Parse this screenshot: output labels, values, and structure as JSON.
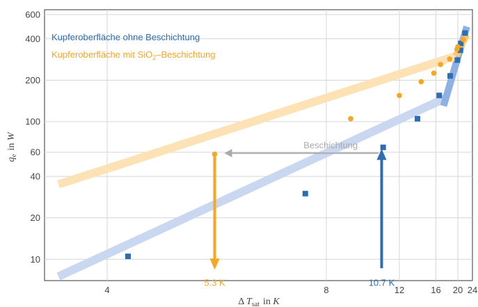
{
  "chart_data": {
    "type": "scatter",
    "x_scale": "reciprocal",
    "y_scale": "log",
    "xlim": [
      3.5,
      24
    ],
    "ylim": [
      7,
      650
    ],
    "xlabel": "Δ T_sat in K",
    "xlabel_parts": {
      "delta": "Δ",
      "symbol": "T",
      "subscript": "sat",
      "unit_prefix": "in",
      "unit": "K"
    },
    "ylabel": "q_e in W",
    "ylabel_parts": {
      "symbol": "q",
      "subscript": "e",
      "unit_prefix": "in",
      "unit": "W"
    },
    "x_ticks": [
      4,
      8,
      12,
      16,
      20,
      24
    ],
    "y_ticks": [
      10,
      20,
      40,
      60,
      100,
      200,
      400,
      600
    ],
    "grid": true,
    "legend_placement": "top-left",
    "series": [
      {
        "name": "Kupferoberfläche ohne Beschichtung",
        "color": "#2e6db3",
        "marker": "square",
        "x": [
          4.2,
          7.3,
          10.8,
          13.7,
          16.5,
          18.4,
          19.9,
          20.6,
          20.7,
          21.8
        ],
        "y": [
          10.5,
          30,
          65,
          105,
          155,
          215,
          280,
          330,
          370,
          440
        ],
        "band_color": "#c9d7f1",
        "band": {
          "x": [
            3.6,
            17.8
          ],
          "y": [
            7.5,
            150
          ]
        },
        "band_upper_color": "#8fb0e2",
        "band_upper": {
          "x": [
            17.2,
            22.3
          ],
          "y": [
            130,
            490
          ]
        }
      },
      {
        "name": "Kupferoberfläche mit SiO2–Beschichtung",
        "name_parts": {
          "prefix": "Kupferoberfläche mit SiO",
          "sub": "2",
          "suffix": "–Beschichtung"
        },
        "color": "#f5a623",
        "marker": "circle",
        "x": [
          5.3,
          9.0,
          12.0,
          14.1,
          15.7,
          16.7,
          18.3,
          19.8,
          20.0,
          21.3
        ],
        "y": [
          58,
          105,
          155,
          195,
          225,
          260,
          285,
          335,
          350,
          395
        ],
        "band_color": "#fde2b6",
        "band": {
          "x": [
            3.6,
            19.6
          ],
          "y": [
            35,
            300
          ]
        },
        "band_upper_color": "#f8c87a",
        "band_upper": {
          "x": [
            19.6,
            22.2
          ],
          "y": [
            300,
            430
          ]
        }
      }
    ],
    "annotations": [
      {
        "text": "Beschichtung",
        "color": "#aaaaaa",
        "from": [
          10.5,
          59
        ],
        "to": [
          5.3,
          59
        ]
      },
      {
        "text": "5.3 K",
        "color": "#f5a623",
        "x": 5.3,
        "from_y": 58,
        "to_y": 8.6
      },
      {
        "text": "10.7 K",
        "color": "#2e6db3",
        "x": 10.7,
        "from_y": 8.6,
        "to_y": 62
      }
    ]
  }
}
